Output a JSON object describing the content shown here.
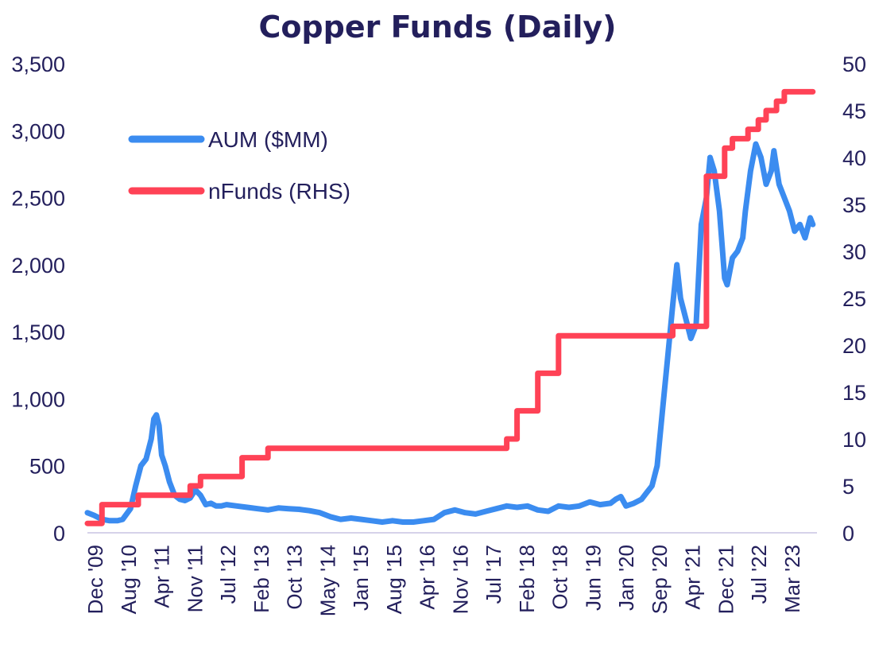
{
  "chart_data": {
    "type": "line",
    "title": "Copper Funds (Daily)",
    "xlabel": "",
    "ylabel": "",
    "x_tick_labels": [
      "Dec '09",
      "Aug '10",
      "Apr '11",
      "Nov '11",
      "Jul '12",
      "Feb '13",
      "Oct '13",
      "May '14",
      "Jan '15",
      "Aug '15",
      "Apr '16",
      "Nov '16",
      "Jul '17",
      "Feb '18",
      "Oct '18",
      "Jun '19",
      "Jan '20",
      "Sep '20",
      "Apr '21",
      "Dec '21",
      "Jul '22",
      "Mar '23"
    ],
    "y_left": {
      "ylim": [
        0,
        3500
      ],
      "ticks": [
        0,
        500,
        1000,
        1500,
        2000,
        2500,
        3000,
        3500
      ],
      "tick_labels": [
        "0",
        "500",
        "1,000",
        "1,500",
        "2,000",
        "2,500",
        "3,000",
        "3,500"
      ]
    },
    "y_right": {
      "ylim": [
        0,
        50
      ],
      "ticks": [
        0,
        5,
        10,
        15,
        20,
        25,
        30,
        35,
        40,
        45,
        50
      ],
      "tick_labels": [
        "0",
        "5",
        "10",
        "15",
        "20",
        "25",
        "30",
        "35",
        "40",
        "45",
        "50"
      ]
    },
    "grid": false,
    "legend_position": "top-left",
    "series": [
      {
        "name": "AUM ($MM)",
        "axis": "left",
        "color": "#3b8cf0",
        "x": [
          2009.92,
          2010.05,
          2010.2,
          2010.35,
          2010.5,
          2010.6,
          2010.75,
          2010.85,
          2010.95,
          2011.05,
          2011.15,
          2011.2,
          2011.25,
          2011.3,
          2011.35,
          2011.42,
          2011.5,
          2011.6,
          2011.7,
          2011.8,
          2011.9,
          2012.0,
          2012.1,
          2012.2,
          2012.3,
          2012.4,
          2012.5,
          2012.6,
          2012.8,
          2013.0,
          2013.2,
          2013.4,
          2013.6,
          2013.8,
          2014.0,
          2014.2,
          2014.4,
          2014.6,
          2014.8,
          2015.0,
          2015.2,
          2015.4,
          2015.6,
          2015.8,
          2016.0,
          2016.2,
          2016.4,
          2016.6,
          2016.8,
          2017.0,
          2017.2,
          2017.4,
          2017.6,
          2017.8,
          2018.0,
          2018.2,
          2018.4,
          2018.6,
          2018.8,
          2019.0,
          2019.2,
          2019.4,
          2019.6,
          2019.8,
          2020.0,
          2020.1,
          2020.2,
          2020.3,
          2020.45,
          2020.6,
          2020.7,
          2020.8,
          2020.9,
          2021.0,
          2021.1,
          2021.2,
          2021.28,
          2021.35,
          2021.45,
          2021.55,
          2021.65,
          2021.75,
          2021.85,
          2021.92,
          2022.0,
          2022.1,
          2022.2,
          2022.25,
          2022.35,
          2022.45,
          2022.55,
          2022.6,
          2022.7,
          2022.8,
          2022.9,
          2023.0,
          2023.1,
          2023.15,
          2023.25,
          2023.35,
          2023.45,
          2023.55,
          2023.65,
          2023.75,
          2023.85,
          2023.9
        ],
        "values": [
          150,
          130,
          100,
          90,
          90,
          100,
          180,
          350,
          500,
          550,
          700,
          850,
          880,
          800,
          580,
          500,
          380,
          280,
          250,
          240,
          260,
          320,
          280,
          210,
          220,
          200,
          200,
          210,
          200,
          190,
          180,
          170,
          185,
          180,
          175,
          165,
          150,
          120,
          100,
          110,
          100,
          90,
          80,
          90,
          80,
          80,
          90,
          100,
          150,
          170,
          150,
          140,
          160,
          180,
          200,
          190,
          200,
          170,
          160,
          200,
          190,
          200,
          230,
          210,
          220,
          250,
          270,
          200,
          220,
          250,
          300,
          350,
          500,
          900,
          1300,
          1700,
          2000,
          1750,
          1600,
          1450,
          1550,
          2300,
          2500,
          2800,
          2700,
          2400,
          1900,
          1850,
          2050,
          2100,
          2200,
          2400,
          2700,
          2900,
          2800,
          2600,
          2700,
          2850,
          2600,
          2500,
          2400,
          2250,
          2300,
          2200,
          2350,
          2300
        ]
      },
      {
        "name": "nFunds (RHS)",
        "axis": "right",
        "color": "#ff4256",
        "step": true,
        "x": [
          2009.92,
          2010.1,
          2010.2,
          2010.9,
          2011.9,
          2012.1,
          2012.9,
          2013.4,
          2018.0,
          2018.2,
          2018.6,
          2019.0,
          2021.2,
          2021.45,
          2021.85,
          2022.2,
          2022.35,
          2022.65,
          2022.85,
          2023.0,
          2023.2,
          2023.35,
          2023.9
        ],
        "values": [
          1,
          1,
          3,
          4,
          5,
          6,
          8,
          9,
          10,
          13,
          17,
          21,
          22,
          22,
          38,
          41,
          42,
          43,
          44,
          45,
          46,
          47,
          47
        ]
      }
    ]
  }
}
